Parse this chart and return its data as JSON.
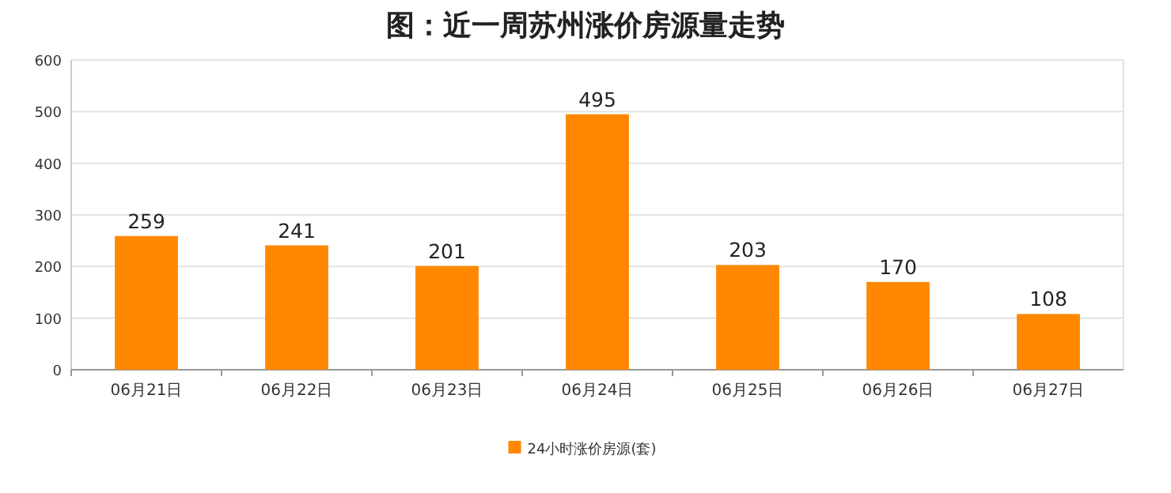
{
  "chart_data": {
    "type": "bar",
    "title": "图：近一周苏州涨价房源量走势",
    "categories": [
      "06月21日",
      "06月22日",
      "06月23日",
      "06月24日",
      "06月25日",
      "06月26日",
      "06月27日"
    ],
    "series": [
      {
        "name": "24小时涨价房源(套)",
        "color": "#ff8800",
        "values": [
          259,
          241,
          201,
          495,
          203,
          170,
          108
        ]
      }
    ],
    "ylim": [
      0,
      600
    ],
    "yticks": [
      0,
      100,
      200,
      300,
      400,
      500,
      600
    ],
    "grid": "y",
    "legend": "bottom",
    "data_labels": true
  }
}
